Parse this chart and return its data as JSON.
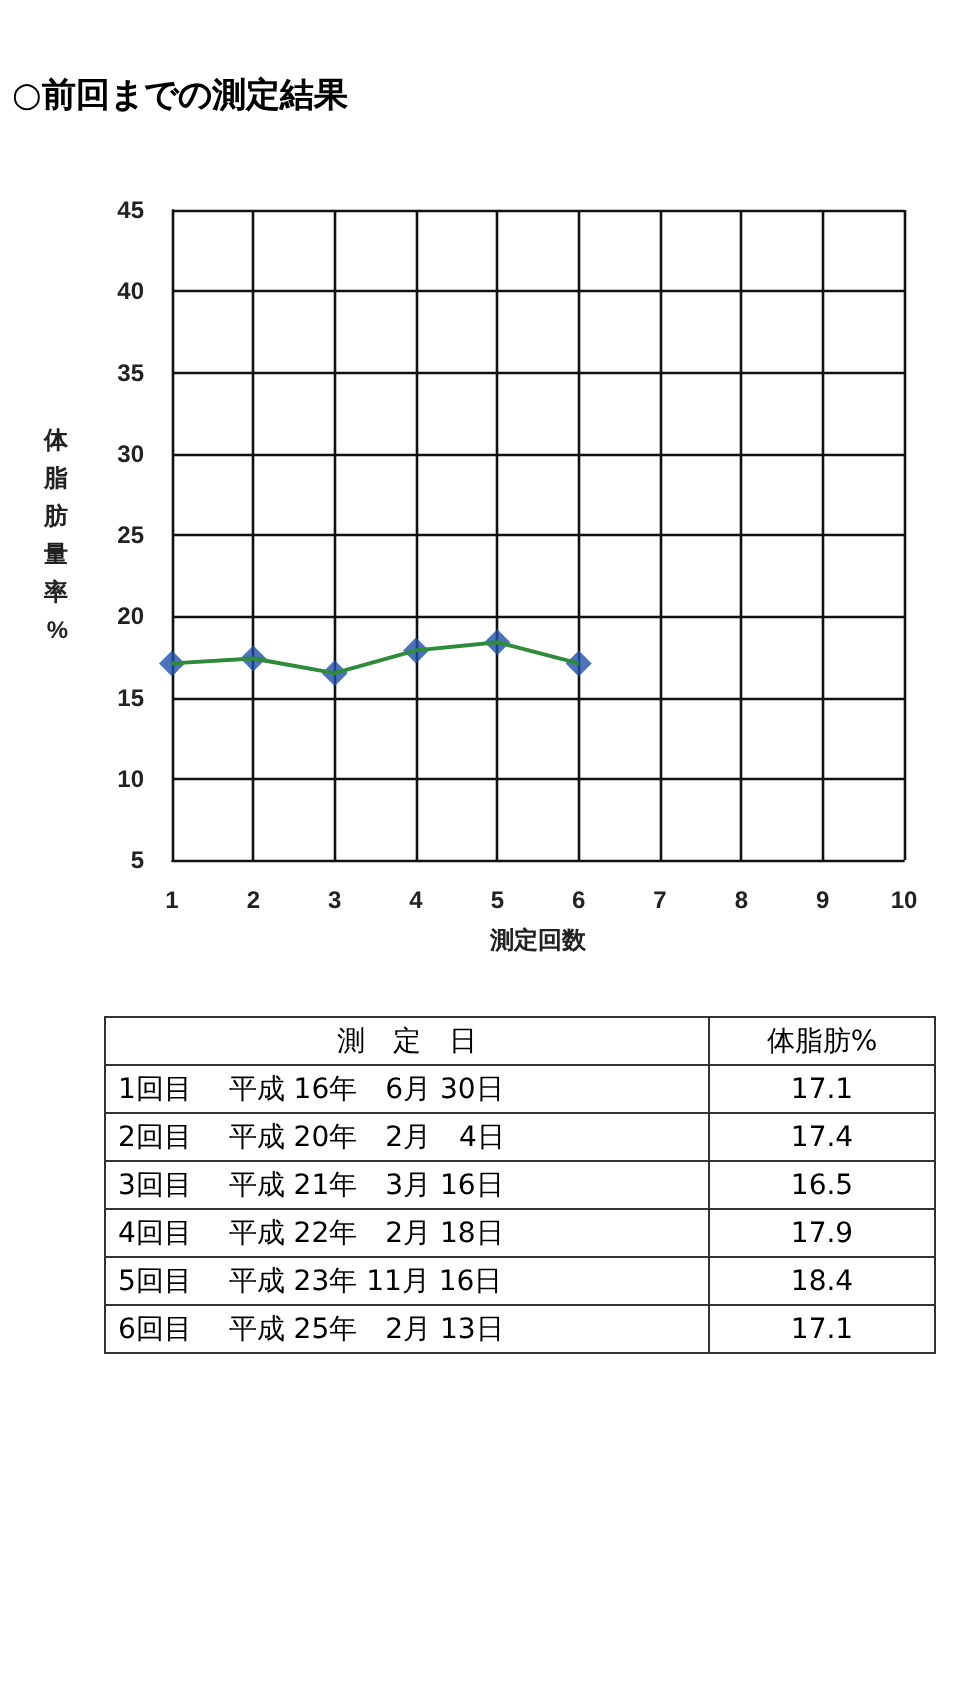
{
  "chart_data": {
    "type": "line",
    "title": "○前回までの測定結果",
    "xlabel": "測定回数",
    "ylabel": "体脂肪量率%",
    "x": [
      1,
      2,
      3,
      4,
      5,
      6
    ],
    "series": [
      {
        "color": "#2e8b3a",
        "marker": "none",
        "line_style": "solid",
        "values": [
          17.1,
          17.4,
          16.5,
          17.9,
          18.4,
          17.1
        ]
      },
      {
        "type": "scatter",
        "color": "#1f4fa8",
        "marker": "diamond",
        "values": [
          17.1,
          17.4,
          16.5,
          17.9,
          18.4,
          17.1
        ]
      }
    ],
    "xlim": [
      1,
      10
    ],
    "xticks": [
      1,
      2,
      3,
      4,
      5,
      6,
      7,
      8,
      9,
      10
    ],
    "ylim": [
      5,
      45
    ],
    "yticks": [
      5,
      10,
      15,
      20,
      25,
      30,
      35,
      40,
      45
    ],
    "grid": true,
    "annotations": [
      "測　定　日",
      "体脂肪%",
      "1回目　 平成 16年　6月 30日",
      "17.1",
      "2回目　 平成 20年　2月　4日",
      "17.4",
      "3回目　 平成 21年　3月 16日",
      "16.5",
      "4回目　 平成 22年　2月 18日",
      "17.9",
      "5回目　 平成 23年 11月 16日",
      "18.4",
      "6回目　 平成 25年　2月 13日",
      "17.1"
    ]
  }
}
